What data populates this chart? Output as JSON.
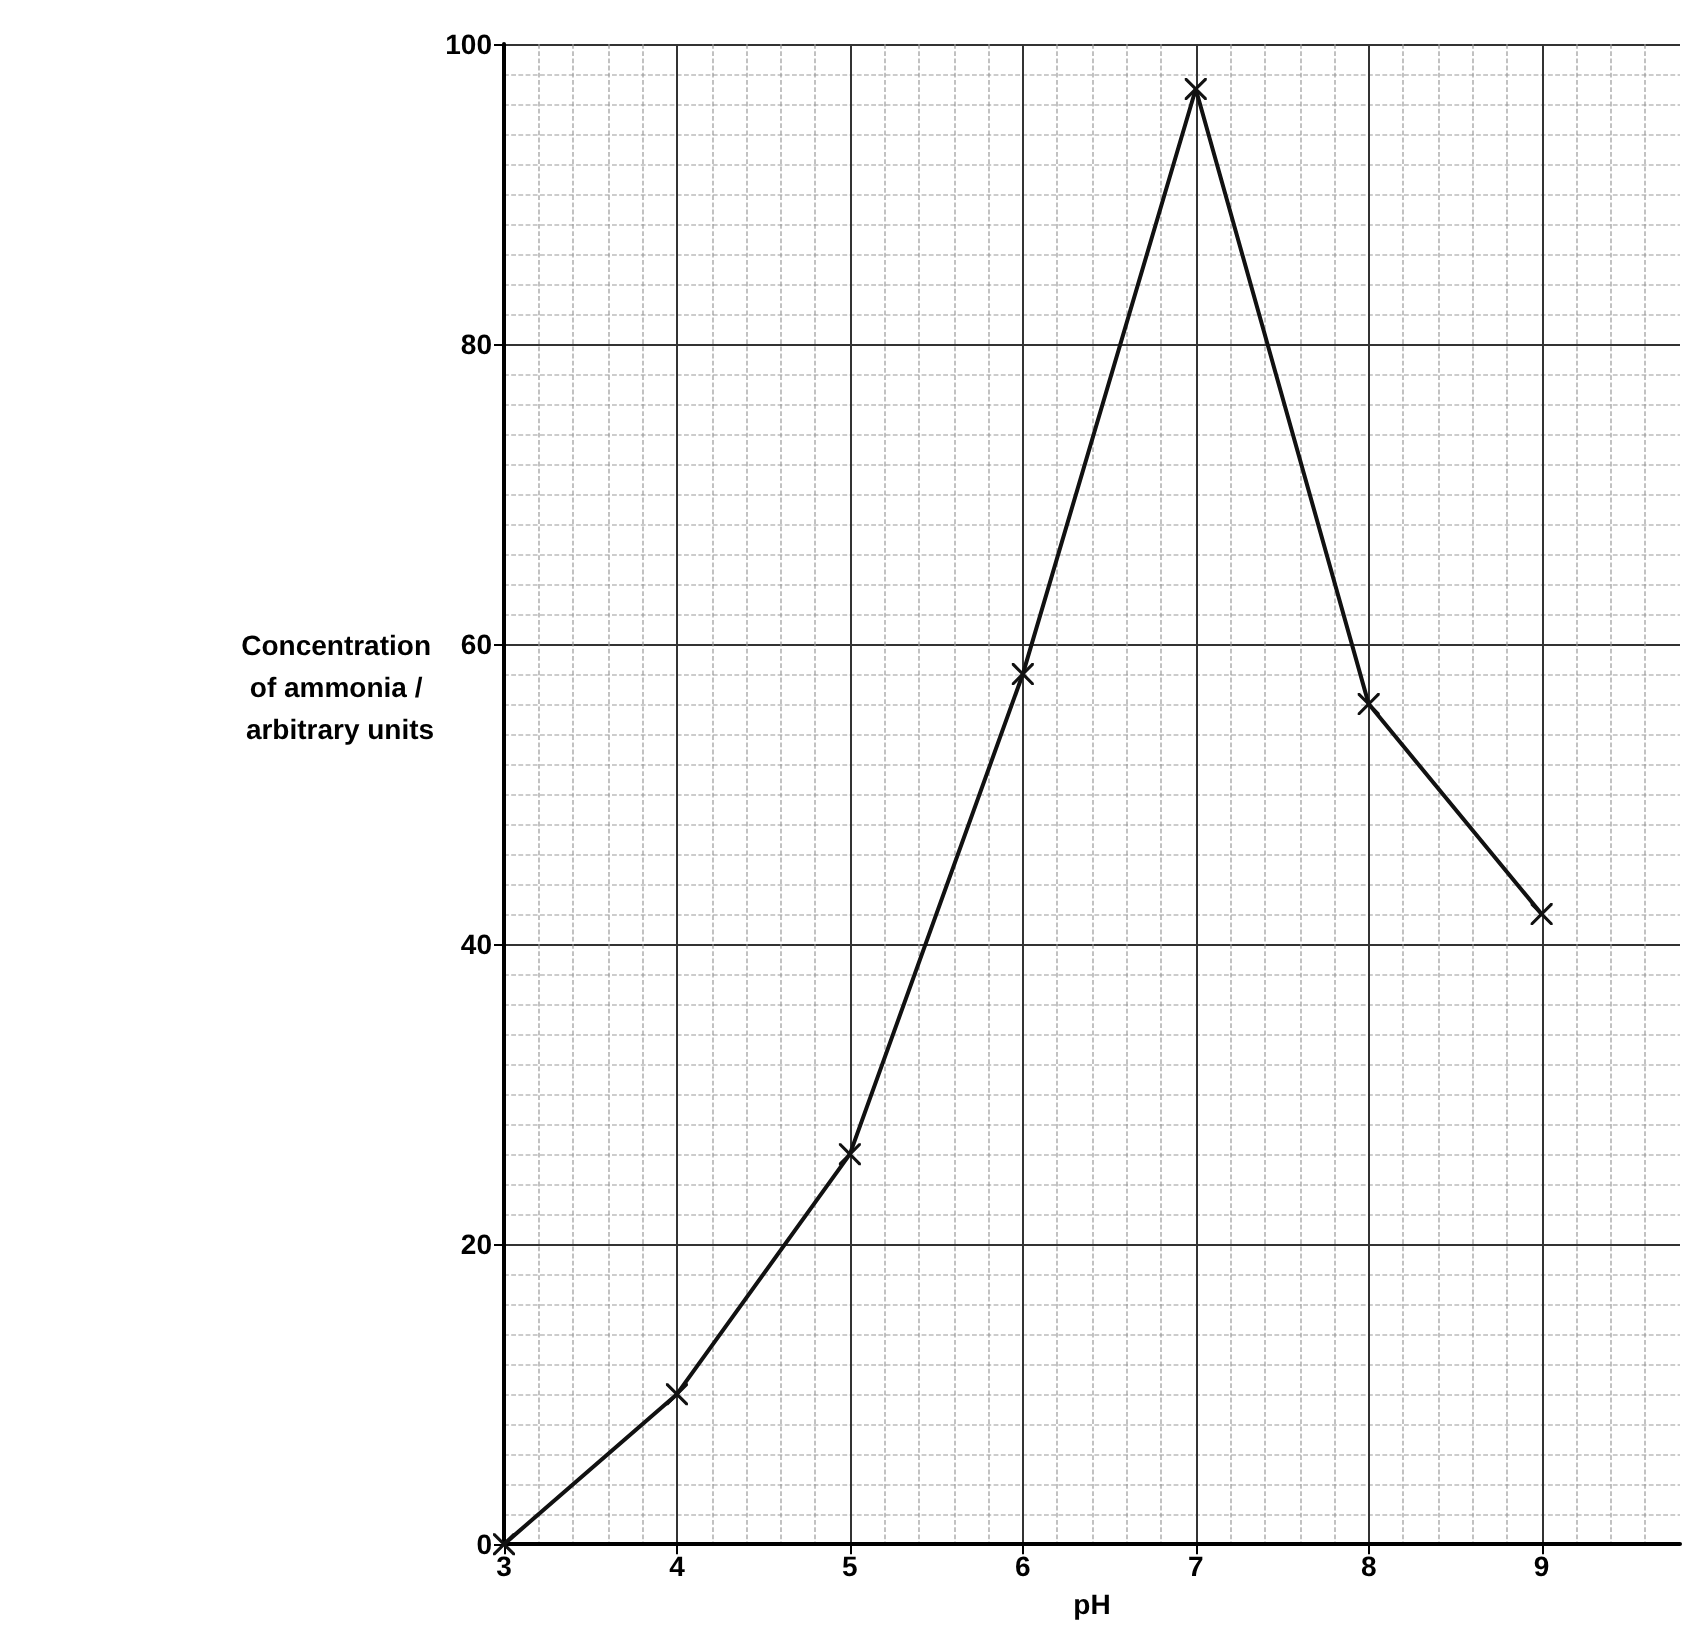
{
  "chart_data": {
    "type": "line",
    "xlabel": "pH",
    "ylabel": "Concentration of ammonia / arbitrary units",
    "x": [
      3,
      4,
      5,
      6,
      7,
      8,
      9
    ],
    "series": [
      {
        "color": "#111111",
        "values": [
          0,
          10,
          26,
          58,
          97,
          56,
          42
        ]
      }
    ],
    "xlim": [
      3,
      9.8
    ],
    "ylim": [
      0,
      100
    ],
    "xticks": [
      3,
      4,
      5,
      6,
      7,
      8,
      9
    ],
    "yticks": [
      0,
      20,
      40,
      60,
      80,
      100
    ],
    "grid": true,
    "marker": "cross",
    "line_style": "solid"
  }
}
